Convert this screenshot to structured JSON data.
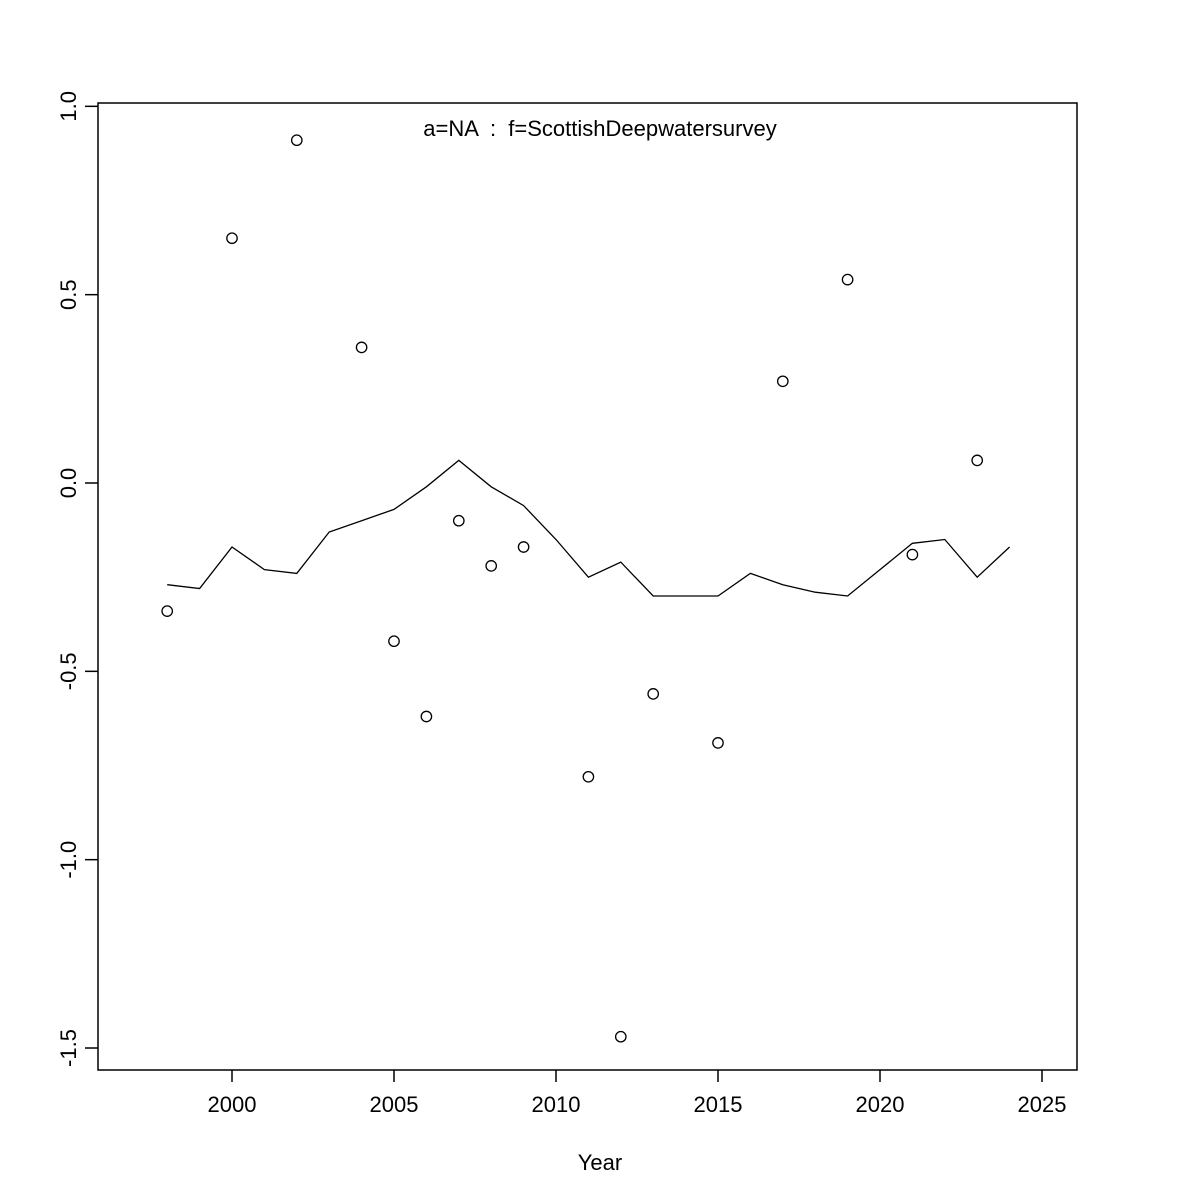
{
  "chart_data": {
    "type": "scatter",
    "title": "a=NA  :  f=ScottishDeepwatersurvey",
    "xlabel": "Year",
    "ylabel": "",
    "xlim": [
      1996,
      2026
    ],
    "ylim": [
      -1.56,
      1.01
    ],
    "grid": false,
    "legend": "none",
    "x_ticks": {
      "values": [
        2000,
        2005,
        2010,
        2015,
        2020,
        2025
      ],
      "labels": [
        "2000",
        "2005",
        "2010",
        "2015",
        "2020",
        "2025"
      ]
    },
    "y_ticks": {
      "values": [
        1.0,
        0.5,
        0.0,
        -0.5,
        -1.0,
        -1.5
      ],
      "labels": [
        "1.0",
        "0.5",
        "0.0",
        "-0.5",
        "-1.0",
        "-1.5"
      ]
    },
    "series": [
      {
        "name": "observations",
        "type": "scatter",
        "marker": "open-circle",
        "x": [
          1998,
          2000,
          2002,
          2004,
          2005,
          2006,
          2007,
          2008,
          2009,
          2011,
          2012,
          2013,
          2015,
          2017,
          2019,
          2021,
          2023
        ],
        "y": [
          -0.34,
          0.65,
          0.91,
          0.36,
          -0.42,
          -0.62,
          -0.1,
          -0.22,
          -0.17,
          -0.78,
          -1.47,
          -0.56,
          -0.69,
          0.27,
          0.54,
          -0.19,
          0.06
        ]
      },
      {
        "name": "smoother",
        "type": "line",
        "x": [
          1998,
          1999,
          2000,
          2001,
          2002,
          2003,
          2004,
          2005,
          2006,
          2007,
          2008,
          2009,
          2010,
          2011,
          2012,
          2013,
          2014,
          2015,
          2016,
          2017,
          2018,
          2019,
          2020,
          2021,
          2022,
          2023,
          2024
        ],
        "y": [
          -0.27,
          -0.28,
          -0.17,
          -0.23,
          -0.24,
          -0.13,
          -0.1,
          -0.07,
          -0.01,
          0.06,
          -0.01,
          -0.06,
          -0.15,
          -0.25,
          -0.21,
          -0.3,
          -0.3,
          -0.3,
          -0.24,
          -0.27,
          -0.29,
          -0.3,
          -0.23,
          -0.16,
          -0.15,
          -0.25,
          -0.17
        ]
      }
    ],
    "colors": {
      "points": "#000000",
      "line": "#000000",
      "title": "#7d7d7d",
      "axis": "#000000",
      "background": "#ffffff"
    }
  }
}
